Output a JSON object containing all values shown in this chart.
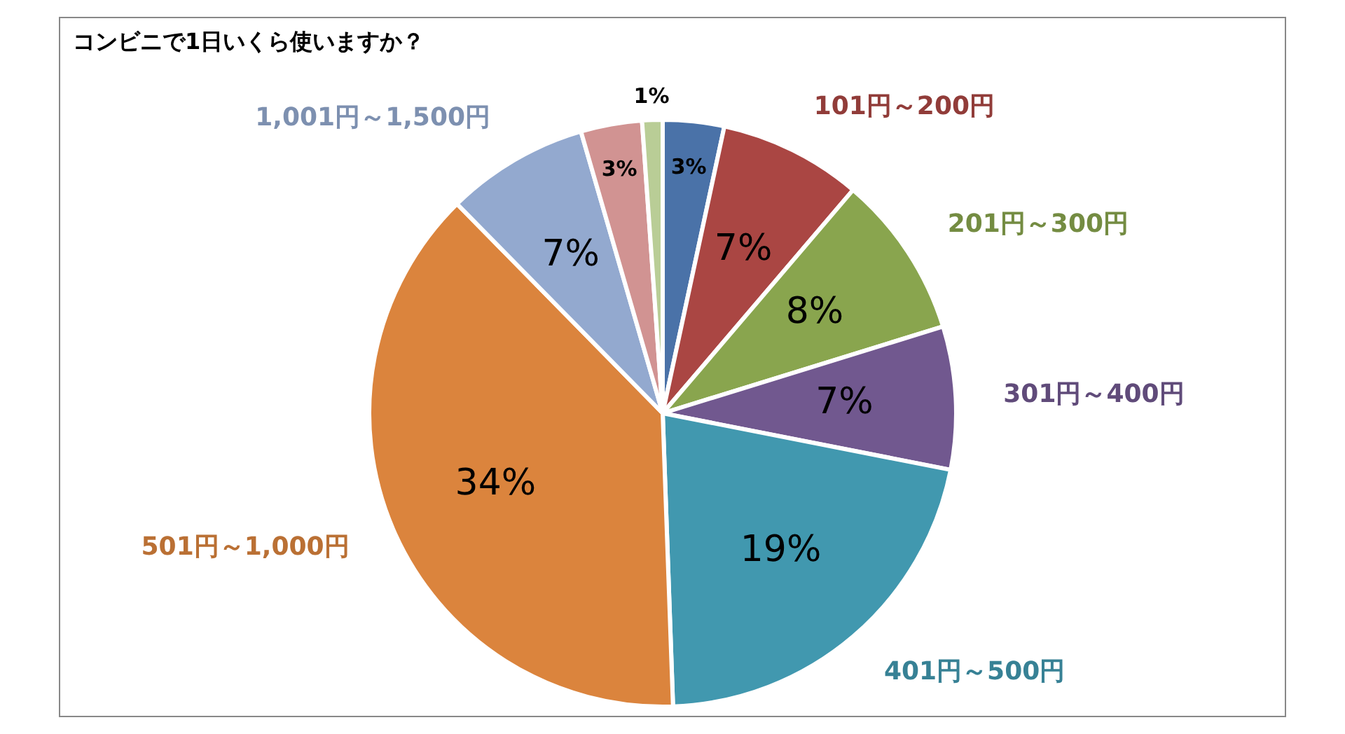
{
  "chart_data": {
    "type": "pie",
    "title": "コンビニで1日いくら使いますか？",
    "categories": [
      null,
      "101円～200円",
      "201円～300円",
      "301円～400円",
      "401円～500円",
      "501円～1,000円",
      "1,001円～1,500円",
      null,
      null
    ],
    "values": [
      3,
      7,
      8,
      7,
      19,
      34,
      7,
      3,
      1
    ],
    "value_labels": [
      "3%",
      "7%",
      "8%",
      "7%",
      "19%",
      "34%",
      "7%",
      "3%",
      "1%"
    ],
    "colors": [
      "#4a72a8",
      "#aa4643",
      "#89a54e",
      "#71588f",
      "#4198af",
      "#db843d",
      "#93a9cf",
      "#d19392",
      "#b9cd96"
    ],
    "legend": false
  }
}
